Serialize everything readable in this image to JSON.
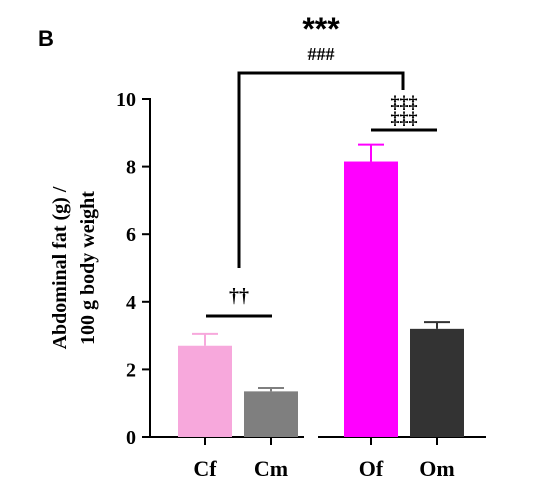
{
  "panel_label": "B",
  "chart_data": {
    "type": "bar",
    "categories": [
      "Cf",
      "Cm",
      "Of",
      "Om"
    ],
    "values": [
      2.7,
      1.35,
      8.15,
      3.2
    ],
    "errors": [
      0.35,
      0.1,
      0.5,
      0.2
    ],
    "colors": [
      "#f7a8dc",
      "#7f7f7f",
      "#ff00ff",
      "#333333"
    ],
    "ylabel": [
      "Abdominal fat (g) /",
      "100 g body weight"
    ],
    "ylim": [
      0,
      10
    ],
    "yticks": [
      "0",
      "2",
      "4",
      "6",
      "8",
      "10"
    ],
    "annotations": {
      "cf_vs_cm": "††",
      "of_vs_om": "‡‡‡\n‡‡‡",
      "main_star": "***",
      "main_hash": "###"
    }
  }
}
